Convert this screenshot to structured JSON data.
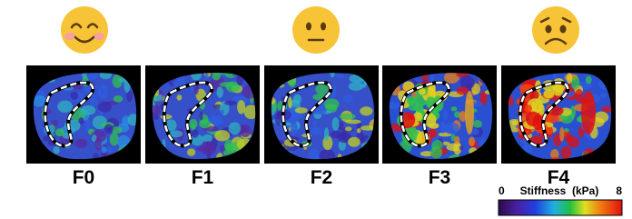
{
  "panels": [
    {
      "label": "F0"
    },
    {
      "label": "F1"
    },
    {
      "label": "F2"
    },
    {
      "label": "F3"
    },
    {
      "label": "F4"
    }
  ],
  "colorbar": {
    "min": "0",
    "title": "Stiffness  (kPa)",
    "max": "8"
  }
}
